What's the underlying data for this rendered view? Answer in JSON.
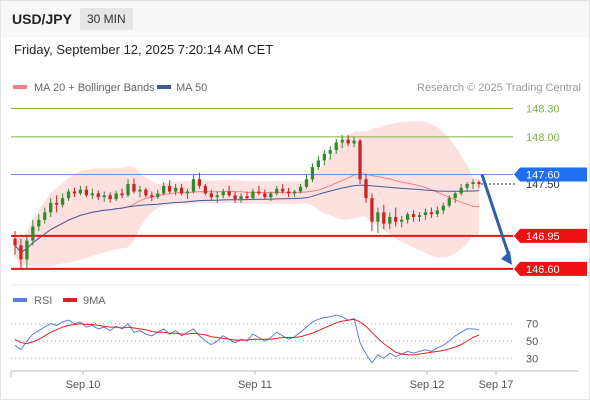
{
  "header": {
    "symbol": "USD/JPY",
    "timeframe": "30 MIN"
  },
  "datetime": "Friday, September 12, 2025 7:20:14 AM CET",
  "legend": {
    "ma20": "MA 20 + Bollinger Bands",
    "ma50": "MA 50",
    "credit": "Research © 2025 Trading Central",
    "rsi": "RSI",
    "rsi_ma": "9MA"
  },
  "colors": {
    "ma20": "#f08080",
    "band": "#fcd5d5",
    "ma50": "#3b5b9b",
    "up": "#2e8b2e",
    "down": "#cc2222",
    "target": "#7cb342",
    "support": "#ee1111",
    "current": "#1e6ef0",
    "pivot": "#6b8fd8",
    "arrow": "#2c5fa8",
    "rsi": "#5b7fd6",
    "rsi_ma": "#dd2222"
  },
  "chart_data": [
    {
      "type": "candlestick",
      "title": "USD/JPY",
      "x_labels": [
        "Sep 10",
        "Sep 11",
        "Sep 12",
        "Sep 17"
      ],
      "ylim": [
        146.45,
        148.38
      ],
      "grid": false,
      "legend_position": "top-left",
      "candles": [
        [
          146.92,
          147.0,
          146.75,
          146.85
        ],
        [
          146.85,
          146.92,
          146.6,
          146.7
        ],
        [
          146.7,
          146.96,
          146.6,
          146.9
        ],
        [
          146.9,
          147.12,
          146.85,
          147.05
        ],
        [
          147.05,
          147.18,
          147.0,
          147.12
        ],
        [
          147.12,
          147.25,
          147.08,
          147.2
        ],
        [
          147.2,
          147.35,
          147.15,
          147.3
        ],
        [
          147.3,
          147.38,
          147.2,
          147.28
        ],
        [
          147.28,
          147.4,
          147.25,
          147.35
        ],
        [
          147.35,
          147.45,
          147.32,
          147.42
        ],
        [
          147.42,
          147.46,
          147.36,
          147.4
        ],
        [
          147.4,
          147.48,
          147.38,
          147.44
        ],
        [
          147.44,
          147.48,
          147.36,
          147.38
        ],
        [
          147.38,
          147.45,
          147.34,
          147.4
        ],
        [
          147.4,
          147.43,
          147.33,
          147.36
        ],
        [
          147.36,
          147.42,
          147.31,
          147.38
        ],
        [
          147.38,
          147.41,
          147.3,
          147.34
        ],
        [
          147.34,
          147.43,
          147.32,
          147.4
        ],
        [
          147.4,
          147.45,
          147.35,
          147.38
        ],
        [
          147.38,
          147.55,
          147.36,
          147.5
        ],
        [
          147.5,
          147.56,
          147.4,
          147.42
        ],
        [
          147.42,
          147.48,
          147.36,
          147.44
        ],
        [
          147.44,
          147.46,
          147.36,
          147.38
        ],
        [
          147.38,
          147.42,
          147.32,
          147.36
        ],
        [
          147.36,
          147.44,
          147.34,
          147.4
        ],
        [
          147.4,
          147.52,
          147.38,
          147.48
        ],
        [
          147.48,
          147.54,
          147.4,
          147.42
        ],
        [
          147.42,
          147.5,
          147.38,
          147.46
        ],
        [
          147.46,
          147.5,
          147.38,
          147.4
        ],
        [
          147.4,
          147.45,
          147.34,
          147.42
        ],
        [
          147.42,
          147.6,
          147.4,
          147.55
        ],
        [
          147.55,
          147.62,
          147.45,
          147.48
        ],
        [
          147.48,
          147.5,
          147.38,
          147.4
        ],
        [
          147.4,
          147.44,
          147.32,
          147.36
        ],
        [
          147.36,
          147.42,
          147.3,
          147.38
        ],
        [
          147.38,
          147.45,
          147.35,
          147.42
        ],
        [
          147.42,
          147.48,
          147.36,
          147.38
        ],
        [
          147.38,
          147.42,
          147.3,
          147.34
        ],
        [
          147.34,
          147.4,
          147.3,
          147.37
        ],
        [
          147.37,
          147.42,
          147.33,
          147.35
        ],
        [
          147.35,
          147.45,
          147.33,
          147.42
        ],
        [
          147.42,
          147.48,
          147.38,
          147.4
        ],
        [
          147.4,
          147.44,
          147.34,
          147.36
        ],
        [
          147.36,
          147.42,
          147.32,
          147.4
        ],
        [
          147.4,
          147.48,
          147.38,
          147.45
        ],
        [
          147.45,
          147.5,
          147.4,
          147.42
        ],
        [
          147.42,
          147.46,
          147.36,
          147.4
        ],
        [
          147.4,
          147.44,
          147.36,
          147.42
        ],
        [
          147.42,
          147.5,
          147.4,
          147.47
        ],
        [
          147.47,
          147.6,
          147.45,
          147.55
        ],
        [
          147.55,
          147.72,
          147.52,
          147.68
        ],
        [
          147.68,
          147.8,
          147.65,
          147.75
        ],
        [
          147.75,
          147.86,
          147.7,
          147.82
        ],
        [
          147.82,
          147.9,
          147.76,
          147.86
        ],
        [
          147.86,
          147.98,
          147.82,
          147.94
        ],
        [
          147.94,
          148.02,
          147.88,
          147.97
        ],
        [
          147.97,
          148.02,
          147.9,
          147.93
        ],
        [
          147.93,
          148.0,
          147.89,
          147.96
        ],
        [
          147.96,
          147.98,
          147.5,
          147.55
        ],
        [
          147.55,
          147.6,
          147.3,
          147.35
        ],
        [
          147.35,
          147.4,
          147.0,
          147.1
        ],
        [
          147.1,
          147.25,
          146.98,
          147.2
        ],
        [
          147.2,
          147.28,
          147.02,
          147.08
        ],
        [
          147.08,
          147.2,
          147.02,
          147.15
        ],
        [
          147.15,
          147.25,
          147.05,
          147.1
        ],
        [
          147.1,
          147.16,
          147.04,
          147.12
        ],
        [
          147.12,
          147.2,
          147.08,
          147.18
        ],
        [
          147.18,
          147.22,
          147.1,
          147.15
        ],
        [
          147.15,
          147.2,
          147.1,
          147.17
        ],
        [
          147.17,
          147.24,
          147.12,
          147.2
        ],
        [
          147.2,
          147.25,
          147.14,
          147.18
        ],
        [
          147.18,
          147.26,
          147.15,
          147.22
        ],
        [
          147.22,
          147.3,
          147.18,
          147.27
        ],
        [
          147.27,
          147.38,
          147.25,
          147.35
        ],
        [
          147.35,
          147.42,
          147.3,
          147.4
        ],
        [
          147.4,
          147.5,
          147.38,
          147.46
        ],
        [
          147.46,
          147.52,
          147.42,
          147.5
        ],
        [
          147.5,
          147.55,
          147.45,
          147.52
        ],
        [
          147.52,
          147.54,
          147.46,
          147.5
        ]
      ],
      "levels": [
        {
          "label": "148.30",
          "value": 148.3
        },
        {
          "label": "148.00",
          "value": 148.0
        },
        {
          "label": "147.60",
          "value": 147.6
        },
        {
          "label": "147.50",
          "value": 147.5
        },
        {
          "label": "146.95",
          "value": 146.95
        },
        {
          "label": "146.60",
          "value": 146.6
        }
      ],
      "projection": {
        "from": 147.6,
        "to": 146.6
      }
    },
    {
      "type": "line",
      "title": "RSI",
      "ylim": [
        20,
        80
      ],
      "ticks": [
        {
          "label": "70",
          "value": 70
        },
        {
          "label": "50",
          "value": 50
        },
        {
          "label": "30",
          "value": 30
        }
      ],
      "series": [
        {
          "name": "RSI",
          "values": [
            45,
            40,
            50,
            58,
            62,
            66,
            70,
            68,
            72,
            74,
            70,
            72,
            66,
            68,
            64,
            66,
            62,
            67,
            64,
            70,
            60,
            62,
            58,
            56,
            60,
            64,
            58,
            62,
            56,
            60,
            64,
            56,
            50,
            46,
            50,
            56,
            52,
            48,
            52,
            50,
            58,
            54,
            50,
            54,
            60,
            56,
            52,
            55,
            60,
            66,
            72,
            75,
            77,
            78,
            80,
            78,
            74,
            76,
            48,
            35,
            25,
            34,
            30,
            36,
            32,
            35,
            38,
            36,
            38,
            40,
            38,
            42,
            45,
            50,
            56,
            60,
            64,
            64,
            63
          ]
        },
        {
          "name": "9MA",
          "values": [
            52,
            48,
            47,
            49,
            52,
            56,
            60,
            63,
            66,
            68,
            69,
            70,
            69,
            69,
            68,
            67,
            66,
            66,
            65,
            66,
            65,
            64,
            63,
            61,
            60,
            60,
            59,
            59,
            58,
            58,
            59,
            58,
            57,
            55,
            54,
            53,
            52,
            51,
            51,
            51,
            52,
            52,
            52,
            52,
            53,
            54,
            54,
            54,
            55,
            57,
            59,
            62,
            65,
            68,
            71,
            73,
            74,
            75,
            72,
            67,
            60,
            53,
            47,
            42,
            37,
            35,
            34,
            34,
            35,
            36,
            37,
            38,
            39,
            41,
            43,
            46,
            50,
            54,
            57
          ]
        }
      ]
    }
  ]
}
